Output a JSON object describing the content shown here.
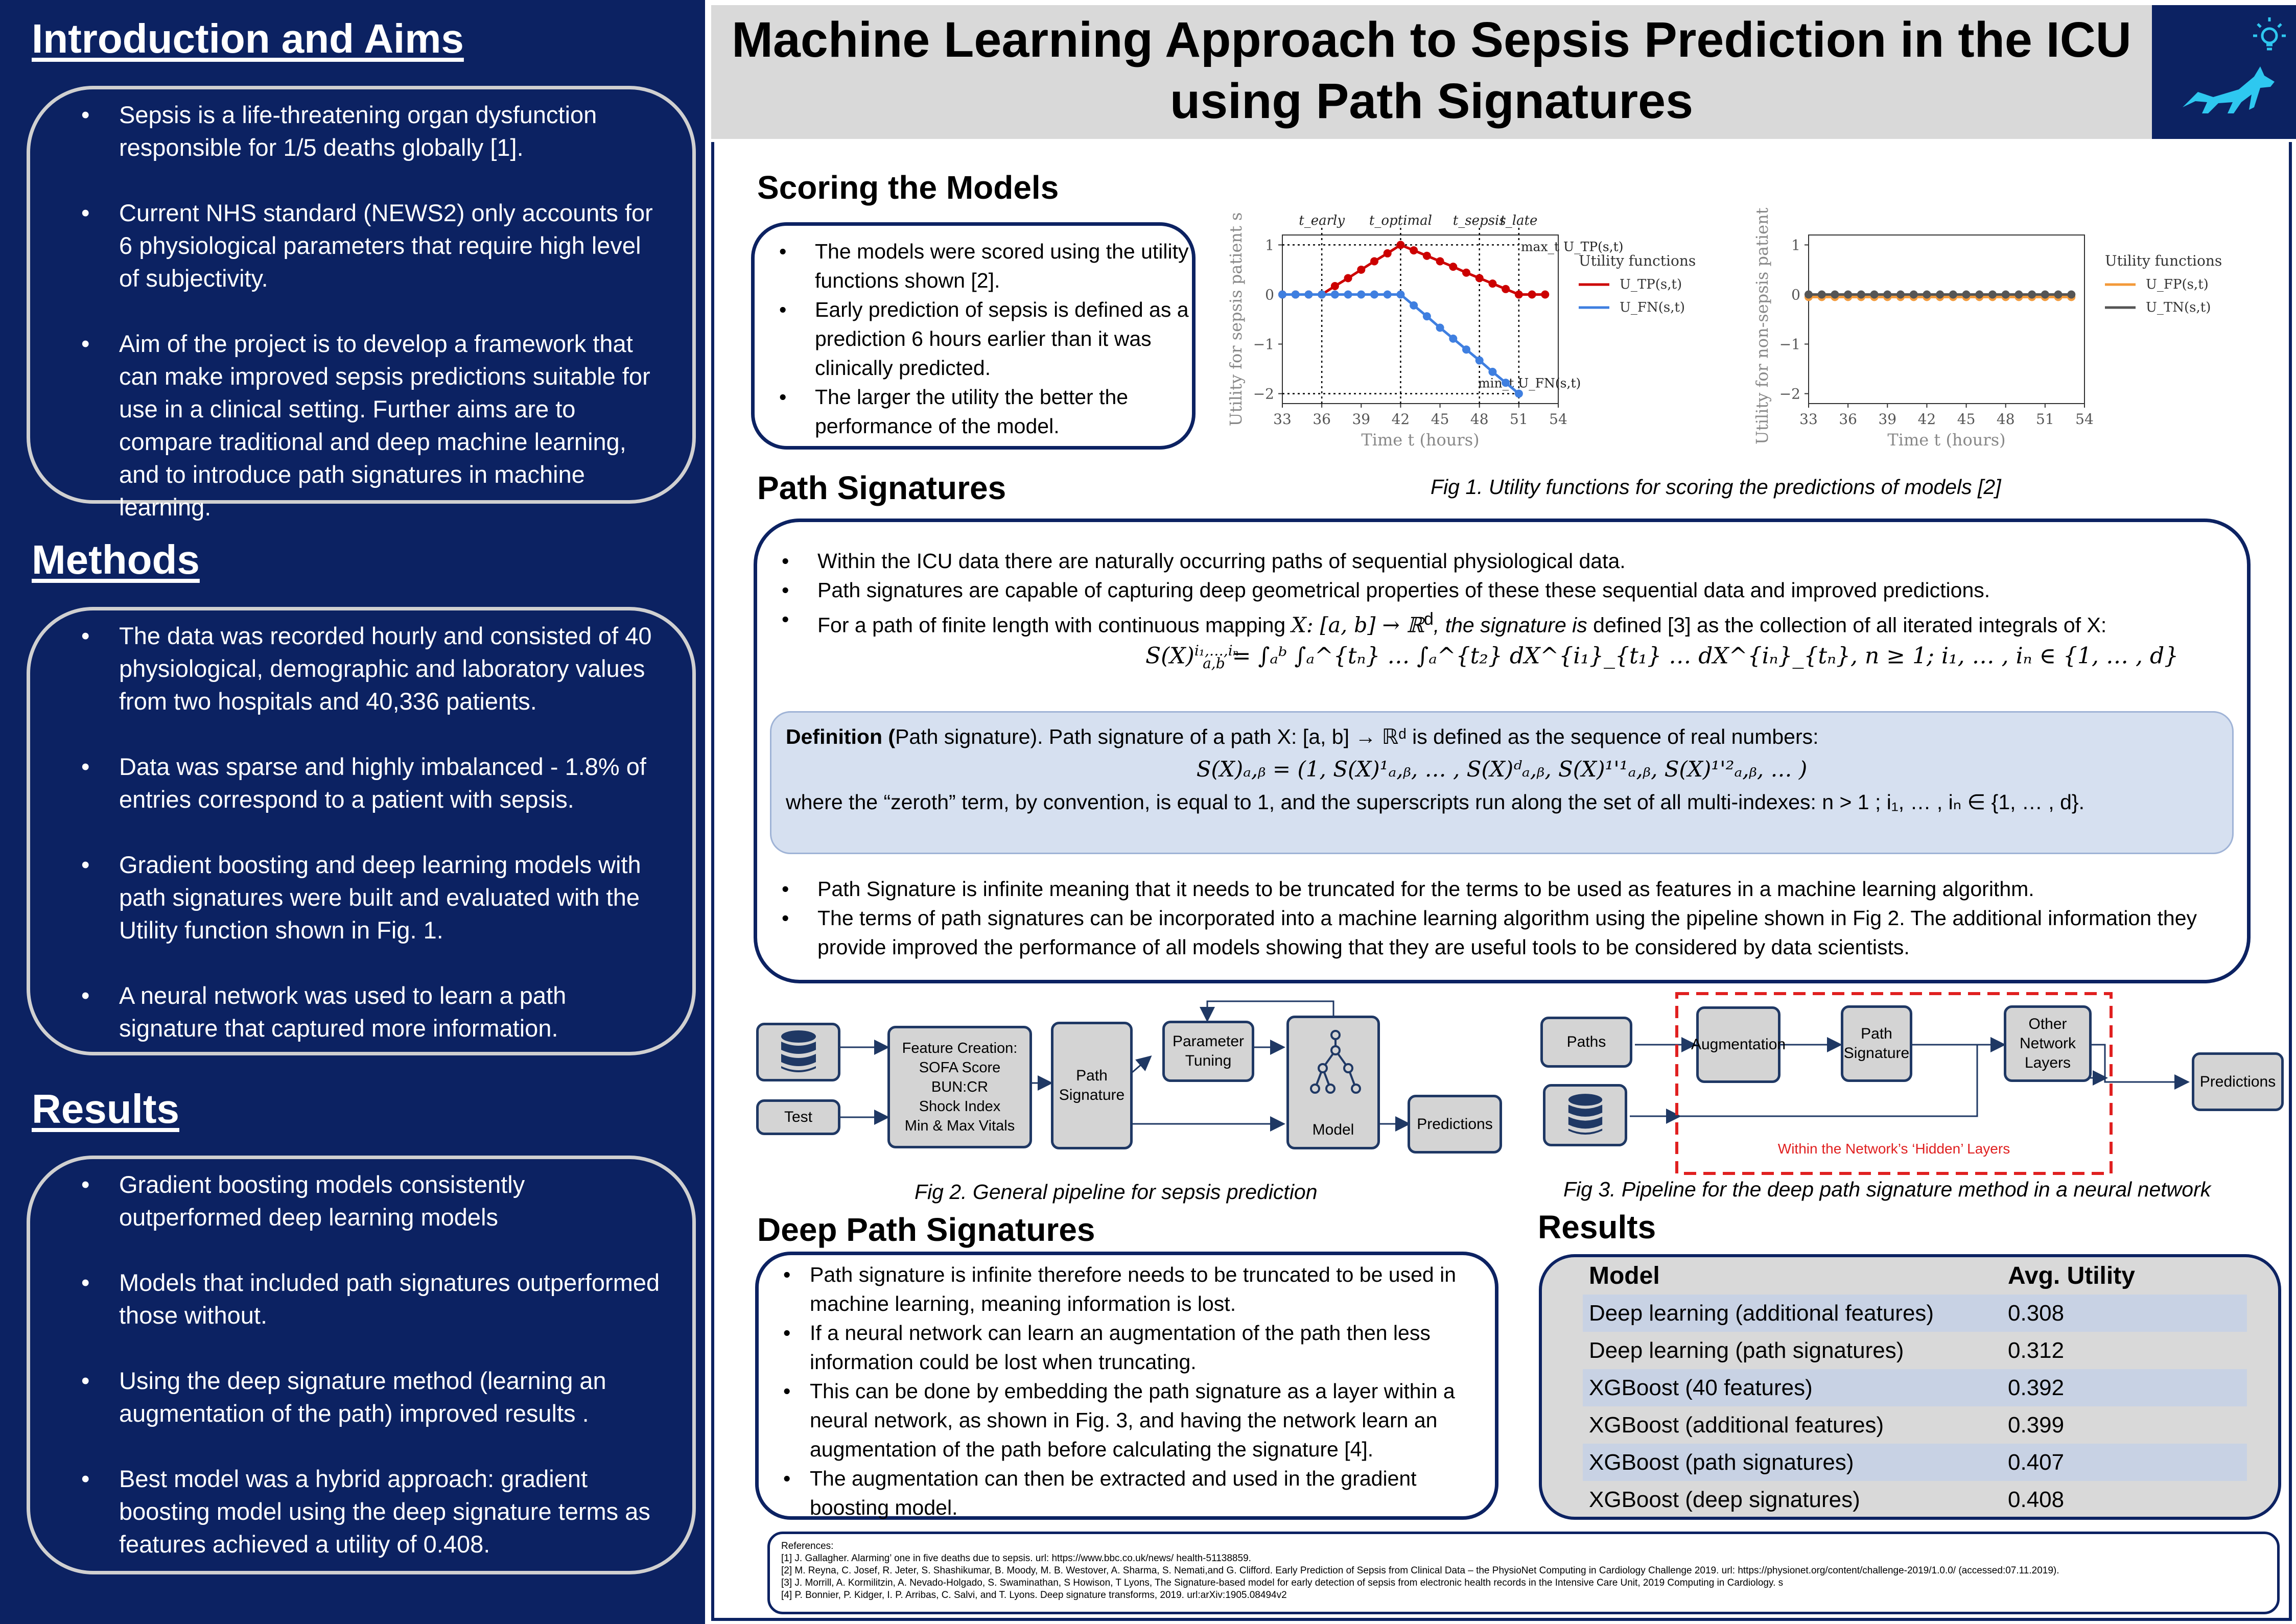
{
  "title": "Machine Learning Approach to Sepsis Prediction in the ICU using Path Signatures",
  "left": {
    "intro": {
      "heading": "Introduction and Aims",
      "items": [
        "Sepsis is a life-threatening organ dysfunction responsible for 1/5 deaths globally [1].",
        "Current NHS standard (NEWS2) only accounts for 6 physiological parameters that require high level of subjectivity.",
        "Aim of the project is to develop a framework that can make improved sepsis predictions suitable for use in a clinical setting. Further aims are to compare traditional and deep machine learning, and to introduce path signatures in machine learning."
      ]
    },
    "methods": {
      "heading": "Methods",
      "items": [
        "The data was recorded hourly and consisted of 40 physiological, demographic and laboratory values from two hospitals and 40,336 patients.",
        "Data was sparse and highly imbalanced - 1.8% of entries correspond to a patient with sepsis.",
        "Gradient boosting and deep learning models  with path signatures were built and evaluated with the Utility function shown in Fig. 1.",
        "A neural network was used to learn a path signature that captured more information."
      ]
    },
    "results": {
      "heading": "Results",
      "items": [
        "Gradient boosting models consistently outperformed deep learning models",
        "Models that included path signatures outperformed those without.",
        "Using the deep signature method (learning an augmentation of the path) improved results .",
        "Best model was a hybrid approach: gradient boosting model using the deep signature terms as features achieved a utility of 0.408."
      ]
    }
  },
  "scoring": {
    "heading": "Scoring the Models",
    "items": [
      "The models were scored using the utility functions shown [2].",
      "Early prediction of sepsis is defined as a prediction 6 hours earlier than it was clinically predicted.",
      "The larger the utility the better the performance of the model."
    ],
    "caption": "Fig 1. Utility functions for scoring the predictions of models [2]"
  },
  "chart_data": [
    {
      "type": "line",
      "xlabel": "Time t (hours)",
      "ylabel": "Utility for sepsis patient s",
      "xticks": [
        33,
        36,
        39,
        42,
        45,
        48,
        51,
        54
      ],
      "yticks": [
        1,
        0,
        -1,
        -2
      ],
      "xlim": [
        33,
        54
      ],
      "ylim": [
        -2.2,
        1.2
      ],
      "legend_title": "Utility functions",
      "legend_position": "right",
      "vlines": [
        {
          "x": 36,
          "label": "t_early"
        },
        {
          "x": 42,
          "label": "t_optimal"
        },
        {
          "x": 48,
          "label": "t_sepsis"
        },
        {
          "x": 51,
          "label": "t_late"
        }
      ],
      "annotations": [
        "max_t U_TP(s,t)",
        "min_t U_FN(s,t)"
      ],
      "x": [
        33,
        34,
        35,
        36,
        37,
        38,
        39,
        40,
        41,
        42,
        43,
        44,
        45,
        46,
        47,
        48,
        49,
        50,
        51,
        52,
        53
      ],
      "series": [
        {
          "name": "U_TP(s,t)",
          "color": "#cc0000",
          "values": [
            0,
            0,
            0,
            0,
            0.17,
            0.33,
            0.5,
            0.67,
            0.83,
            1.0,
            0.89,
            0.78,
            0.67,
            0.56,
            0.44,
            0.33,
            0.22,
            0.11,
            0,
            0,
            0
          ]
        },
        {
          "name": "U_FN(s,t)",
          "color": "#3f7fe0",
          "values": [
            0,
            0,
            0,
            0,
            0,
            0,
            0,
            0,
            0,
            0,
            -0.22,
            -0.44,
            -0.67,
            -0.89,
            -1.11,
            -1.33,
            -1.56,
            -1.78,
            -2.0,
            null,
            null
          ]
        }
      ]
    },
    {
      "type": "line",
      "xlabel": "Time t (hours)",
      "ylabel": "Utility for non-sepsis patient s",
      "xticks": [
        33,
        36,
        39,
        42,
        45,
        48,
        51,
        54
      ],
      "yticks": [
        1,
        0,
        -1,
        -2
      ],
      "xlim": [
        33,
        54
      ],
      "ylim": [
        -2.2,
        1.2
      ],
      "legend_title": "Utility functions",
      "legend_position": "right",
      "x": [
        33,
        34,
        35,
        36,
        37,
        38,
        39,
        40,
        41,
        42,
        43,
        44,
        45,
        46,
        47,
        48,
        49,
        50,
        51,
        52,
        53
      ],
      "series": [
        {
          "name": "U_FP(s,t)",
          "color": "#f39a3a",
          "values": [
            -0.05,
            -0.05,
            -0.05,
            -0.05,
            -0.05,
            -0.05,
            -0.05,
            -0.05,
            -0.05,
            -0.05,
            -0.05,
            -0.05,
            -0.05,
            -0.05,
            -0.05,
            -0.05,
            -0.05,
            -0.05,
            -0.05,
            -0.05,
            -0.05
          ]
        },
        {
          "name": "U_TN(s,t)",
          "color": "#555555",
          "values": [
            0,
            0,
            0,
            0,
            0,
            0,
            0,
            0,
            0,
            0,
            0,
            0,
            0,
            0,
            0,
            0,
            0,
            0,
            0,
            0,
            0
          ]
        }
      ]
    }
  ],
  "pathsig": {
    "heading": "Path Signatures",
    "items": [
      "Within the ICU data there are naturally occurring paths of sequential physiological data.",
      "Path signatures are capable of capturing deep geometrical properties of these these sequential data and improved predictions."
    ],
    "item3_pre": "For a path of finite length with  continuous mapping ",
    "item3_math": "X: [a, b] → ℝ",
    "item3_sup": "d",
    "item3_italic": ", the signature is",
    "item3_post": " defined [3] as the collection of all iterated integrals of X:",
    "formula_lhs": "S(X)",
    "formula_sup": "i₁,…,iₙ",
    "formula_sub": "a,b",
    "formula_rhs": "= ∫ₐᵇ ∫ₐ^{tₙ} … ∫ₐ^{t₂} dX^{i₁}_{t₁} … dX^{iₙ}_{tₙ},      n ≥ 1;    i₁, … , iₙ ∈ {1, … , d}",
    "definition_label": "Definition (",
    "definition_text": "Path signature). Path signature of a path X: [a, b] → ℝᵈ  is  defined as the sequence of real numbers:",
    "definition_formula": "S(X)ₐ,ᵦ = (1, S(X)¹ₐ,ᵦ, … , S(X)ᵈₐ,ᵦ, S(X)¹'¹ₐ,ᵦ, S(X)¹'²ₐ,ᵦ, … )",
    "definition_tail": "where the “zeroth” term, by convention, is equal to 1, and the superscripts run along the set of all multi-indexes: n > 1 ;    i₁, … , iₙ ∈ {1, … , d}.",
    "items_after": [
      "Path Signature is infinite meaning that it needs to be truncated for the terms to be used as features in a machine learning algorithm.",
      "The terms of path signatures can be incorporated into a machine learning algorithm using the pipeline shown in Fig 2. The additional information they provide improved the performance of all models showing that they are useful tools to be considered by data scientists."
    ]
  },
  "fig2": {
    "caption": "Fig 2. General pipeline for sepsis prediction",
    "test": "Test",
    "features": "Feature Creation:\nSOFA Score\nBUN:CR\nShock Index\nMin & Max Vitals",
    "pathsig": "Path\nSignature",
    "tuning": "Parameter\nTuning",
    "model": "Model",
    "predictions": "Predictions"
  },
  "fig3": {
    "caption": "Fig 3. Pipeline for the deep path signature method in a neural network",
    "paths": "Paths",
    "augmentation": "Augmentation",
    "pathsig": "Path\nSignature",
    "other": "Other\nNetwork\nLayers",
    "predictions": "Predictions",
    "hidden": "Within the Network’s ‘Hidden’ Layers"
  },
  "deep": {
    "heading": "Deep Path Signatures",
    "items": [
      "Path signature is infinite therefore needs to be truncated to be used in machine learning, meaning information is lost.",
      "If a neural network can learn an augmentation of the path then less information could be lost when truncating.",
      "This can be done by embedding the path signature as a layer within a neural network, as shown in Fig. 3, and having the network learn an augmentation of the path before calculating the signature [4].",
      "The augmentation can then be extracted and used in the gradient boosting model."
    ]
  },
  "results_table": {
    "heading": "Results",
    "col_model": "Model",
    "col_utility": "Avg. Utility",
    "rows": [
      {
        "model": "Deep learning (additional features)",
        "utility": "0.308"
      },
      {
        "model": "Deep learning (path signatures)",
        "utility": "0.312"
      },
      {
        "model": "XGBoost (40 features)",
        "utility": "0.392"
      },
      {
        "model": "XGBoost (additional features)",
        "utility": "0.399"
      },
      {
        "model": "XGBoost (path signatures)",
        "utility": "0.407"
      },
      {
        "model": "XGBoost (deep signatures)",
        "utility": "0.408"
      }
    ]
  },
  "references": {
    "label": "References:",
    "items": [
      "[1] J. Gallagher. Alarming’ one in five deaths due to sepsis. url: https://www.bbc.co.uk/news/ health-51138859.",
      "[2] M. Reyna, C. Josef, R. Jeter, S. Shashikumar, B. Moody, M. B. Westover, A. Sharma, S. Nemati,and G. Clifford.   Early Prediction of Sepsis from Clinical Data – the PhysioNet Computing in Cardiology Challenge 2019. url: https://physionet.org/content/challenge-2019/1.0.0/ (accessed:07.11.2019).",
      "[3] J. Morrill, A. Kormilitzin, A. Nevado-Holgado, S. Swaminathan, S Howison, T Lyons, The Signature-based model for early detection of sepsis from electronic health records in the Intensive Care Unit, 2019 Computing in Cardiology. s",
      "[4] P. Bonnier, P. Kidger, I. P. Arribas, C. Salvi, and T. Lyons. Deep signature transforms, 2019. url:arXiv:1905.08494v2"
    ]
  },
  "colors": {
    "navy": "#0c2262",
    "title_bg": "#d9d9d9",
    "logo": "#2ec8f0",
    "tp": "#cc0000",
    "fn": "#3f7fe0",
    "fp": "#f39a3a",
    "tn": "#555555",
    "hidden_border": "#e02020"
  }
}
